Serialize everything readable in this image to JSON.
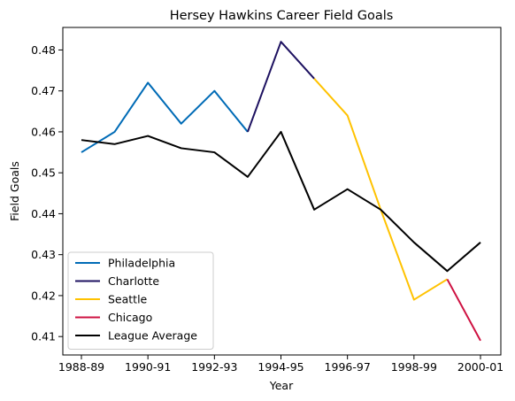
{
  "chart_data": {
    "type": "line",
    "title": "Hersey Hawkins Career Field Goals",
    "xlabel": "Year",
    "ylabel": "Field Goals",
    "x_tick_labels": [
      "1988-89",
      "1990-91",
      "1992-93",
      "1994-95",
      "1996-97",
      "1998-99",
      "2000-01"
    ],
    "x_categories": [
      "1988-89",
      "1989-90",
      "1990-91",
      "1991-92",
      "1992-93",
      "1993-94",
      "1994-95",
      "1995-96",
      "1996-97",
      "1997-98",
      "1998-99",
      "1999-00",
      "2000-01"
    ],
    "y_ticks": [
      0.41,
      0.42,
      0.43,
      0.44,
      0.45,
      0.46,
      0.47,
      0.48
    ],
    "ylim": [
      0.4055,
      0.4855
    ],
    "grid": false,
    "legend_position": "lower-left",
    "series": [
      {
        "name": "Philadelphia",
        "color": "#006bb6",
        "x": [
          "1988-89",
          "1989-90",
          "1990-91",
          "1991-92",
          "1992-93",
          "1993-94"
        ],
        "values": [
          0.455,
          0.46,
          0.472,
          0.462,
          0.47,
          0.46
        ]
      },
      {
        "name": "Charlotte",
        "color": "#1d1160",
        "x": [
          "1993-94",
          "1994-95",
          "1995-96"
        ],
        "values": [
          0.46,
          0.482,
          0.473
        ]
      },
      {
        "name": "Seattle",
        "color": "#ffc200",
        "x": [
          "1995-96",
          "1996-97",
          "1997-98",
          "1998-99",
          "1999-00"
        ],
        "values": [
          0.473,
          0.464,
          0.441,
          0.419,
          0.424
        ]
      },
      {
        "name": "Chicago",
        "color": "#ce1141",
        "x": [
          "1999-00",
          "2000-01"
        ],
        "values": [
          0.424,
          0.409
        ]
      },
      {
        "name": "League Average",
        "color": "#000000",
        "x": [
          "1988-89",
          "1989-90",
          "1990-91",
          "1991-92",
          "1992-93",
          "1993-94",
          "1994-95",
          "1995-96",
          "1996-97",
          "1997-98",
          "1998-99",
          "1999-00",
          "2000-01"
        ],
        "values": [
          0.458,
          0.457,
          0.459,
          0.456,
          0.455,
          0.449,
          0.46,
          0.441,
          0.446,
          0.441,
          0.433,
          0.426,
          0.433
        ]
      }
    ]
  }
}
